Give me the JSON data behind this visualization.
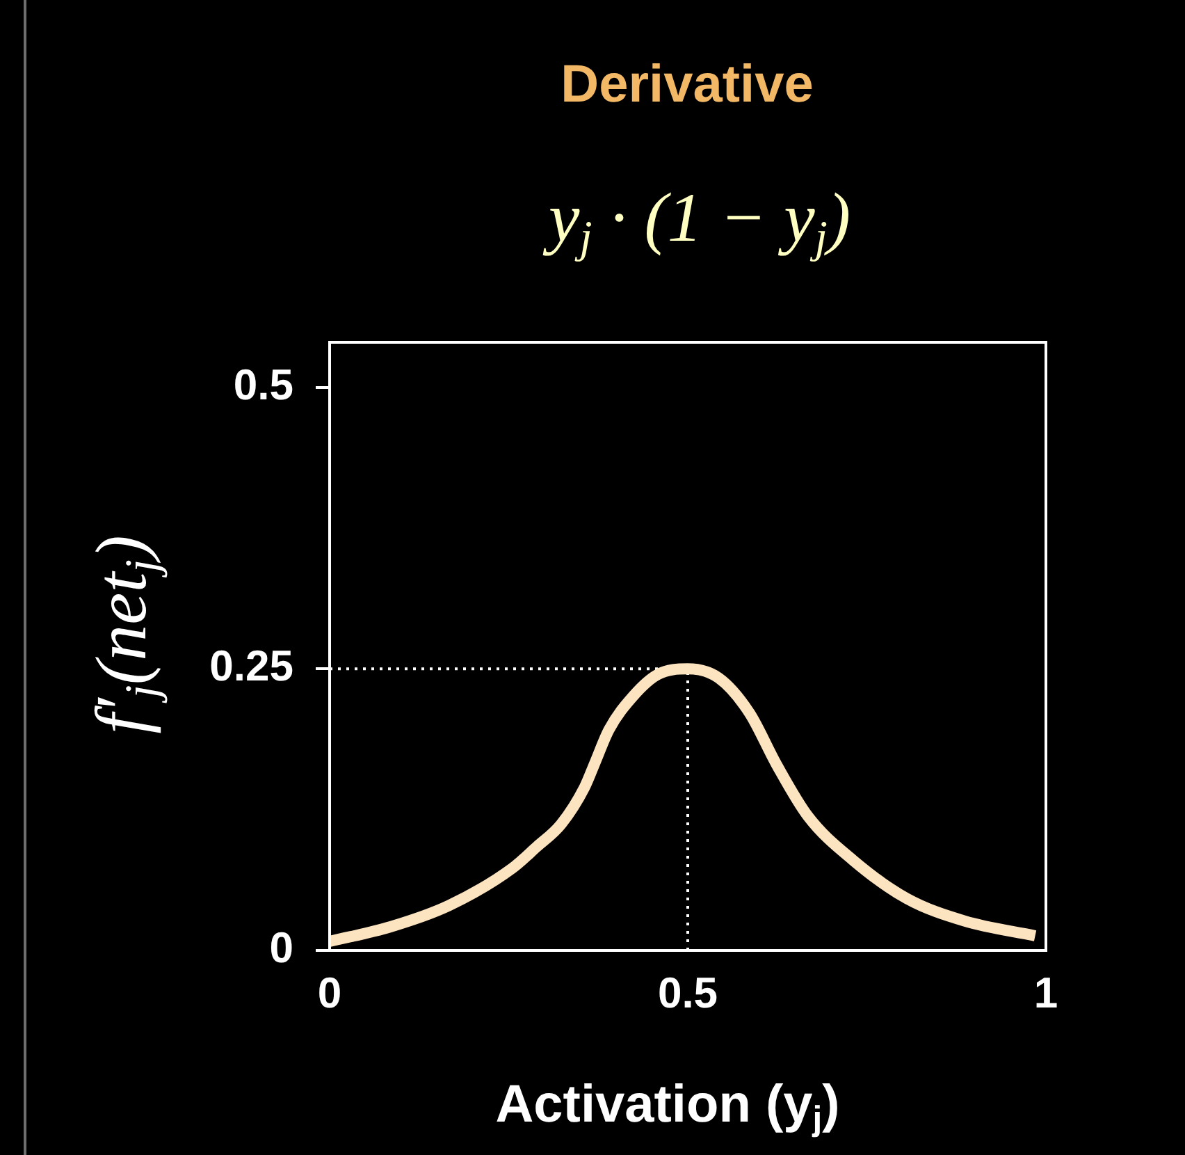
{
  "chart_data": {
    "type": "line",
    "title": "Derivative",
    "subtitle": "y$_{j}$ · (1 − y$_{j}$)",
    "xlabel": "Activation (y$_{j}$)",
    "ylabel": "f′$_{j}$(net$_{j}$)",
    "x": [
      0,
      0.085,
      0.167,
      0.255,
      0.289,
      0.323,
      0.356,
      0.37,
      0.39,
      0.424,
      0.458,
      0.5,
      0.543,
      0.586,
      0.624,
      0.668,
      0.731,
      0.806,
      0.887,
      0.985
    ],
    "series": [
      {
        "color": "#fde4c0",
        "values": [
          0.008,
          0.021,
          0.04,
          0.073,
          0.092,
          0.112,
          0.145,
          0.166,
          0.196,
          0.226,
          0.245,
          0.25,
          0.242,
          0.211,
          0.165,
          0.119,
          0.08,
          0.046,
          0.026,
          0.013
        ]
      }
    ],
    "xlim": [
      0,
      1
    ],
    "xticks": [
      0,
      0.5,
      1
    ],
    "ylim": [
      0,
      0.54
    ],
    "yticks": [
      0,
      0.25,
      0.5
    ],
    "grid": false,
    "legend": false,
    "marker": "none",
    "ref_lines": [
      {
        "axis": "y",
        "value": 0.25,
        "color": "#ffffff",
        "line_style": "dotted"
      },
      {
        "axis": "x",
        "value": 0.5,
        "color": "#ffffff",
        "line_style": "dotted"
      }
    ]
  }
}
